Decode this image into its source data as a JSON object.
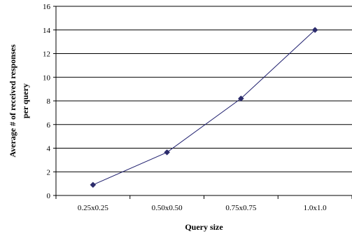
{
  "chart_data": {
    "type": "line",
    "title": "",
    "xlabel": "Query size",
    "ylabel_lines": [
      "Average # of received responses",
      "per query"
    ],
    "categories": [
      "0.25x0.25",
      "0.50x0.50",
      "0.75x0.75",
      "1.0x1.0"
    ],
    "series": [
      {
        "values": [
          0.9,
          3.65,
          8.2,
          14.0
        ],
        "color": "#1f1f6e",
        "marker": "diamond",
        "marker_color": "#2b2b6b"
      }
    ],
    "ylim": [
      0,
      16
    ],
    "yticks": [
      0,
      2,
      4,
      6,
      8,
      10,
      12,
      14,
      16
    ],
    "grid": "horizontal",
    "legend": "none"
  }
}
